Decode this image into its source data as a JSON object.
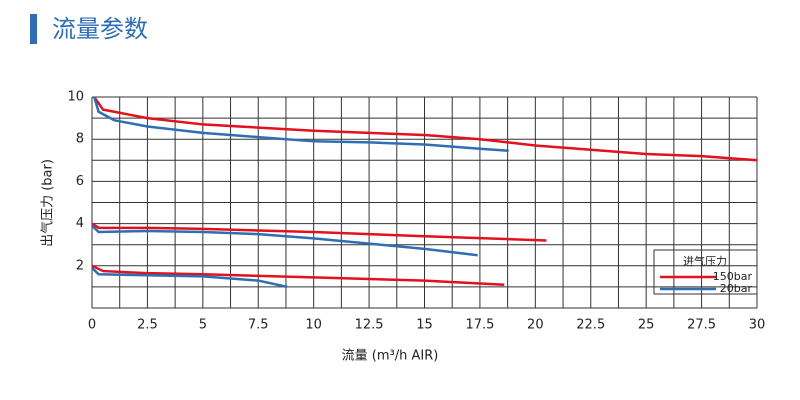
{
  "header": {
    "title": "流量参数"
  },
  "chart_data": {
    "type": "line",
    "x_label": "流量 (m³/h AIR)",
    "y_label": "出气压力 (bar)",
    "xlim": [
      0,
      30
    ],
    "ylim": [
      0,
      10
    ],
    "xticks": [
      0,
      2.5,
      5,
      7.5,
      10,
      12.5,
      15,
      17.5,
      20,
      22.5,
      25,
      27.5,
      30
    ],
    "yticks": [
      2,
      4,
      6,
      8,
      10
    ],
    "xgrid": [
      0,
      1.25,
      2.5,
      3.75,
      5,
      6.25,
      7.5,
      8.75,
      10,
      11.25,
      12.5,
      13.75,
      15,
      16.25,
      17.5,
      18.75,
      20,
      21.25,
      22.5,
      23.75,
      25,
      26.25,
      27.5,
      28.75,
      30
    ],
    "ygrid": [
      0,
      1,
      2,
      3,
      4,
      5,
      6,
      7,
      8,
      9,
      10
    ],
    "grid": true,
    "legend_title": "进气压力",
    "legend_position": "lower right",
    "series": [
      {
        "name": "150bar",
        "color": "#e3101e",
        "lines": [
          {
            "x": [
              0.1,
              0.5,
              1,
              2.5,
              5,
              10,
              12.5,
              15,
              17.5,
              20,
              22.5,
              25,
              27.5,
              30
            ],
            "y": [
              10,
              9.4,
              9.3,
              9.0,
              8.7,
              8.4,
              8.3,
              8.2,
              8.0,
              7.7,
              7.5,
              7.3,
              7.2,
              7.0
            ]
          },
          {
            "x": [
              0,
              0.3,
              2.5,
              5,
              10,
              15,
              20.5
            ],
            "y": [
              4,
              3.8,
              3.8,
              3.75,
              3.6,
              3.4,
              3.2
            ]
          },
          {
            "x": [
              0,
              0.5,
              2.5,
              5,
              10,
              15,
              18.6
            ],
            "y": [
              2.0,
              1.75,
              1.65,
              1.6,
              1.45,
              1.3,
              1.1
            ]
          }
        ]
      },
      {
        "name": "20bar",
        "color": "#2f6db5",
        "lines": [
          {
            "x": [
              0.1,
              0.3,
              1,
              2.5,
              5,
              7.5,
              10,
              12.5,
              15,
              17.5,
              18.8
            ],
            "y": [
              10,
              9.3,
              8.9,
              8.6,
              8.3,
              8.1,
              7.9,
              7.85,
              7.75,
              7.55,
              7.45
            ]
          },
          {
            "x": [
              0,
              0.3,
              2.5,
              5,
              7.5,
              10,
              12.5,
              15,
              17.4
            ],
            "y": [
              3.9,
              3.6,
              3.65,
              3.6,
              3.5,
              3.3,
              3.05,
              2.8,
              2.5
            ]
          },
          {
            "x": [
              0,
              0.3,
              2.5,
              5,
              7.5,
              8.8
            ],
            "y": [
              1.9,
              1.6,
              1.55,
              1.5,
              1.3,
              1.0
            ]
          }
        ]
      }
    ]
  }
}
